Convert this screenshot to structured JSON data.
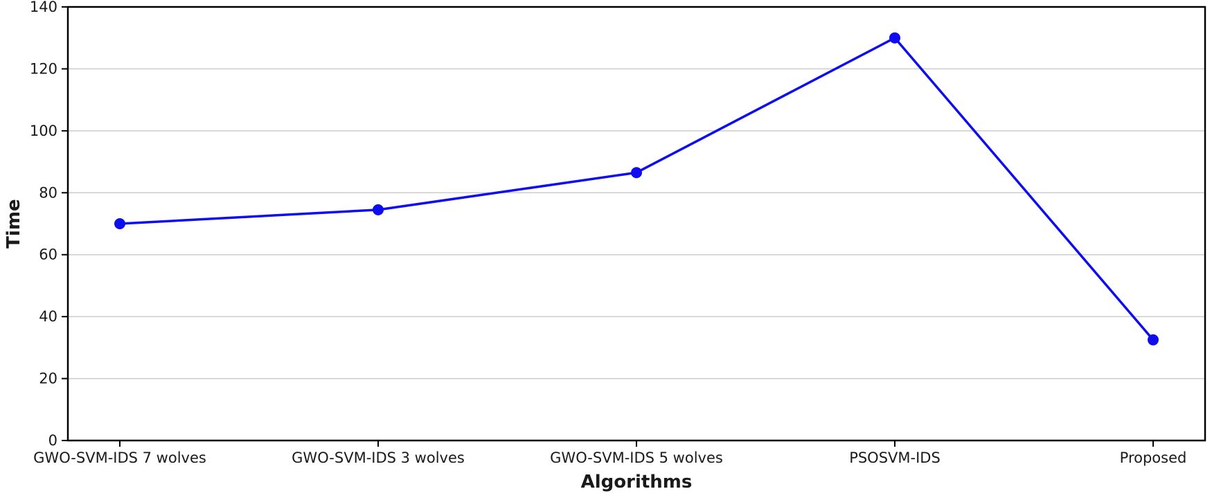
{
  "figure": {
    "background": "#ffffff"
  },
  "chart_data": {
    "type": "line",
    "title": "",
    "xlabel": "Algorithms",
    "ylabel": "Time",
    "categories": [
      "GWO-SVM-IDS 7 wolves",
      "GWO-SVM-IDS 3 wolves",
      "GWO-SVM-IDS 5 wolves",
      "PSOSVM-IDS",
      "Proposed"
    ],
    "series": [
      {
        "name": "Time",
        "values": [
          70,
          74.5,
          86.5,
          130,
          32.5
        ]
      }
    ],
    "ylim": [
      0,
      140
    ],
    "yticks": [
      0,
      20,
      40,
      60,
      80,
      100,
      120,
      140
    ],
    "grid": "horizontal",
    "legend_position": "none",
    "marker": "circle",
    "line_color": "#0d0df0",
    "marker_color": "#0d0df0",
    "grid_color": "#cccccc",
    "axis_color": "#000000",
    "text_color": "#1a1a1a"
  }
}
